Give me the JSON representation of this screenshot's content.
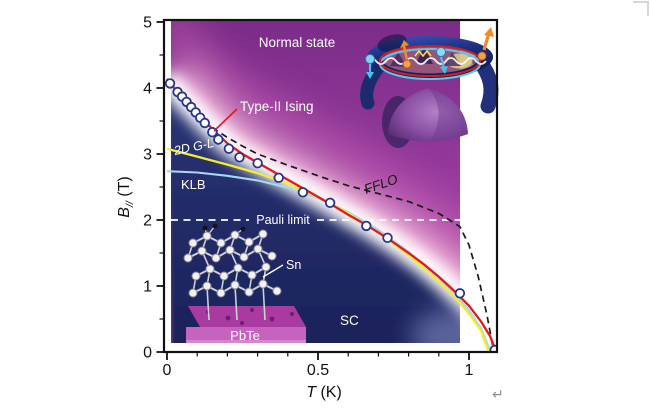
{
  "figure": {
    "region_labels": {
      "normal_state": "Normal state",
      "type2_ising": "Type-II Ising",
      "gl_2d": "2D G-L",
      "klb": "KLB",
      "fflo": "FFLO",
      "pauli": "Pauli limit",
      "sc": "SC"
    },
    "inset_labels": {
      "sn": "Sn",
      "pbte": "PbTe"
    },
    "marks": {
      "return_mark": "↵"
    },
    "colors": {
      "fit_red": "#e3191d",
      "gl_yellow": "#f5ec2a",
      "klb_cyan": "#a5d8f2",
      "fflo_black": "#1a1a1a",
      "marker_navy": "#27348c",
      "sc_navy": "#1f2a66",
      "normal_purple": "#82308e",
      "pink_band": "#f4b9da",
      "slab_magenta": "#b03fae"
    }
  },
  "chart_data": {
    "type": "scatter",
    "title": "",
    "xlabel_main": "T",
    "xlabel_unit": " (K)",
    "ylabel_main": "B",
    "ylabel_sub": "//",
    "ylabel_unit": " (T)",
    "xlim": [
      0,
      1.09
    ],
    "ylim": [
      0,
      5
    ],
    "x_ticks": [
      0,
      0.5,
      1
    ],
    "x_tick_labels": [
      "0",
      "0.5",
      "1"
    ],
    "x_minor_step": 0.1,
    "y_ticks": [
      0,
      1,
      2,
      3,
      4,
      5
    ],
    "y_tick_labels": [
      "0",
      "1",
      "2",
      "3",
      "4",
      "5"
    ],
    "y_minor_step": 0.5,
    "pauli_limit_B": 2,
    "colored_region_T_max": 0.97,
    "grid": false,
    "legend": "none",
    "series": [
      {
        "id": "data_points",
        "name": "Experimental upper critical field data",
        "kind": "scatter",
        "marker": "open-circle",
        "color": "#27348c",
        "points": [
          [
            0.01,
            4.07
          ],
          [
            0.035,
            3.94
          ],
          [
            0.05,
            3.87
          ],
          [
            0.065,
            3.79
          ],
          [
            0.08,
            3.71
          ],
          [
            0.095,
            3.63
          ],
          [
            0.11,
            3.55
          ],
          [
            0.125,
            3.47
          ],
          [
            0.15,
            3.33
          ],
          [
            0.17,
            3.22
          ],
          [
            0.205,
            3.08
          ],
          [
            0.24,
            2.95
          ],
          [
            0.3,
            2.86
          ],
          [
            0.37,
            2.64
          ],
          [
            0.45,
            2.42
          ],
          [
            0.54,
            2.26
          ],
          [
            0.66,
            1.91
          ],
          [
            0.73,
            1.73
          ],
          [
            0.97,
            0.89
          ],
          [
            1.085,
            0.03
          ]
        ]
      },
      {
        "id": "type2_ising_fit",
        "name": "Type-II Ising fit",
        "kind": "line",
        "style": "solid",
        "color": "#e3191d",
        "points": [
          [
            0.0,
            4.14
          ],
          [
            0.03,
            3.96
          ],
          [
            0.06,
            3.8
          ],
          [
            0.09,
            3.66
          ],
          [
            0.12,
            3.52
          ],
          [
            0.15,
            3.38
          ],
          [
            0.2,
            3.16
          ],
          [
            0.25,
            3.0
          ],
          [
            0.3,
            2.87
          ],
          [
            0.35,
            2.74
          ],
          [
            0.4,
            2.61
          ],
          [
            0.45,
            2.48
          ],
          [
            0.5,
            2.35
          ],
          [
            0.55,
            2.22
          ],
          [
            0.6,
            2.08
          ],
          [
            0.65,
            1.95
          ],
          [
            0.7,
            1.81
          ],
          [
            0.75,
            1.66
          ],
          [
            0.8,
            1.5
          ],
          [
            0.85,
            1.33
          ],
          [
            0.9,
            1.14
          ],
          [
            0.95,
            0.93
          ],
          [
            1.0,
            0.7
          ],
          [
            1.04,
            0.46
          ],
          [
            1.07,
            0.24
          ],
          [
            1.09,
            0.0
          ]
        ]
      },
      {
        "id": "fflo",
        "name": "FFLO boundary",
        "kind": "line",
        "style": "dashed",
        "color": "#1a1a1a",
        "points": [
          [
            0.15,
            3.4
          ],
          [
            0.2,
            3.25
          ],
          [
            0.25,
            3.12
          ],
          [
            0.3,
            3.0
          ],
          [
            0.4,
            2.83
          ],
          [
            0.5,
            2.67
          ],
          [
            0.6,
            2.52
          ],
          [
            0.7,
            2.4
          ],
          [
            0.8,
            2.28
          ],
          [
            0.9,
            2.1
          ],
          [
            0.97,
            1.9
          ],
          [
            1.0,
            1.62
          ],
          [
            1.03,
            1.15
          ],
          [
            1.06,
            0.55
          ],
          [
            1.08,
            0.05
          ]
        ]
      },
      {
        "id": "gl_2d",
        "name": "2D Ginzburg-Landau",
        "kind": "line",
        "style": "solid",
        "color": "#f5ec2a",
        "points": [
          [
            0.0,
            3.08
          ],
          [
            0.1,
            2.96
          ],
          [
            0.2,
            2.84
          ],
          [
            0.3,
            2.71
          ],
          [
            0.4,
            2.55
          ],
          [
            0.5,
            2.35
          ],
          [
            0.6,
            2.1
          ],
          [
            0.7,
            1.81
          ],
          [
            0.8,
            1.47
          ],
          [
            0.9,
            1.07
          ],
          [
            0.95,
            0.85
          ],
          [
            1.0,
            0.58
          ],
          [
            1.04,
            0.32
          ],
          [
            1.065,
            0.0
          ]
        ]
      },
      {
        "id": "klb",
        "name": "Klemm-Luther-Beasley",
        "kind": "line",
        "style": "solid",
        "color": "#a5d8f2",
        "points": [
          [
            0.0,
            2.74
          ],
          [
            0.1,
            2.72
          ],
          [
            0.2,
            2.67
          ],
          [
            0.3,
            2.6
          ],
          [
            0.4,
            2.49
          ],
          [
            0.5,
            2.33
          ],
          [
            0.6,
            2.12
          ],
          [
            0.7,
            1.85
          ],
          [
            0.8,
            1.52
          ],
          [
            0.9,
            1.12
          ],
          [
            0.95,
            0.9
          ],
          [
            1.0,
            0.63
          ],
          [
            1.04,
            0.36
          ],
          [
            1.07,
            0.02
          ]
        ]
      }
    ]
  }
}
